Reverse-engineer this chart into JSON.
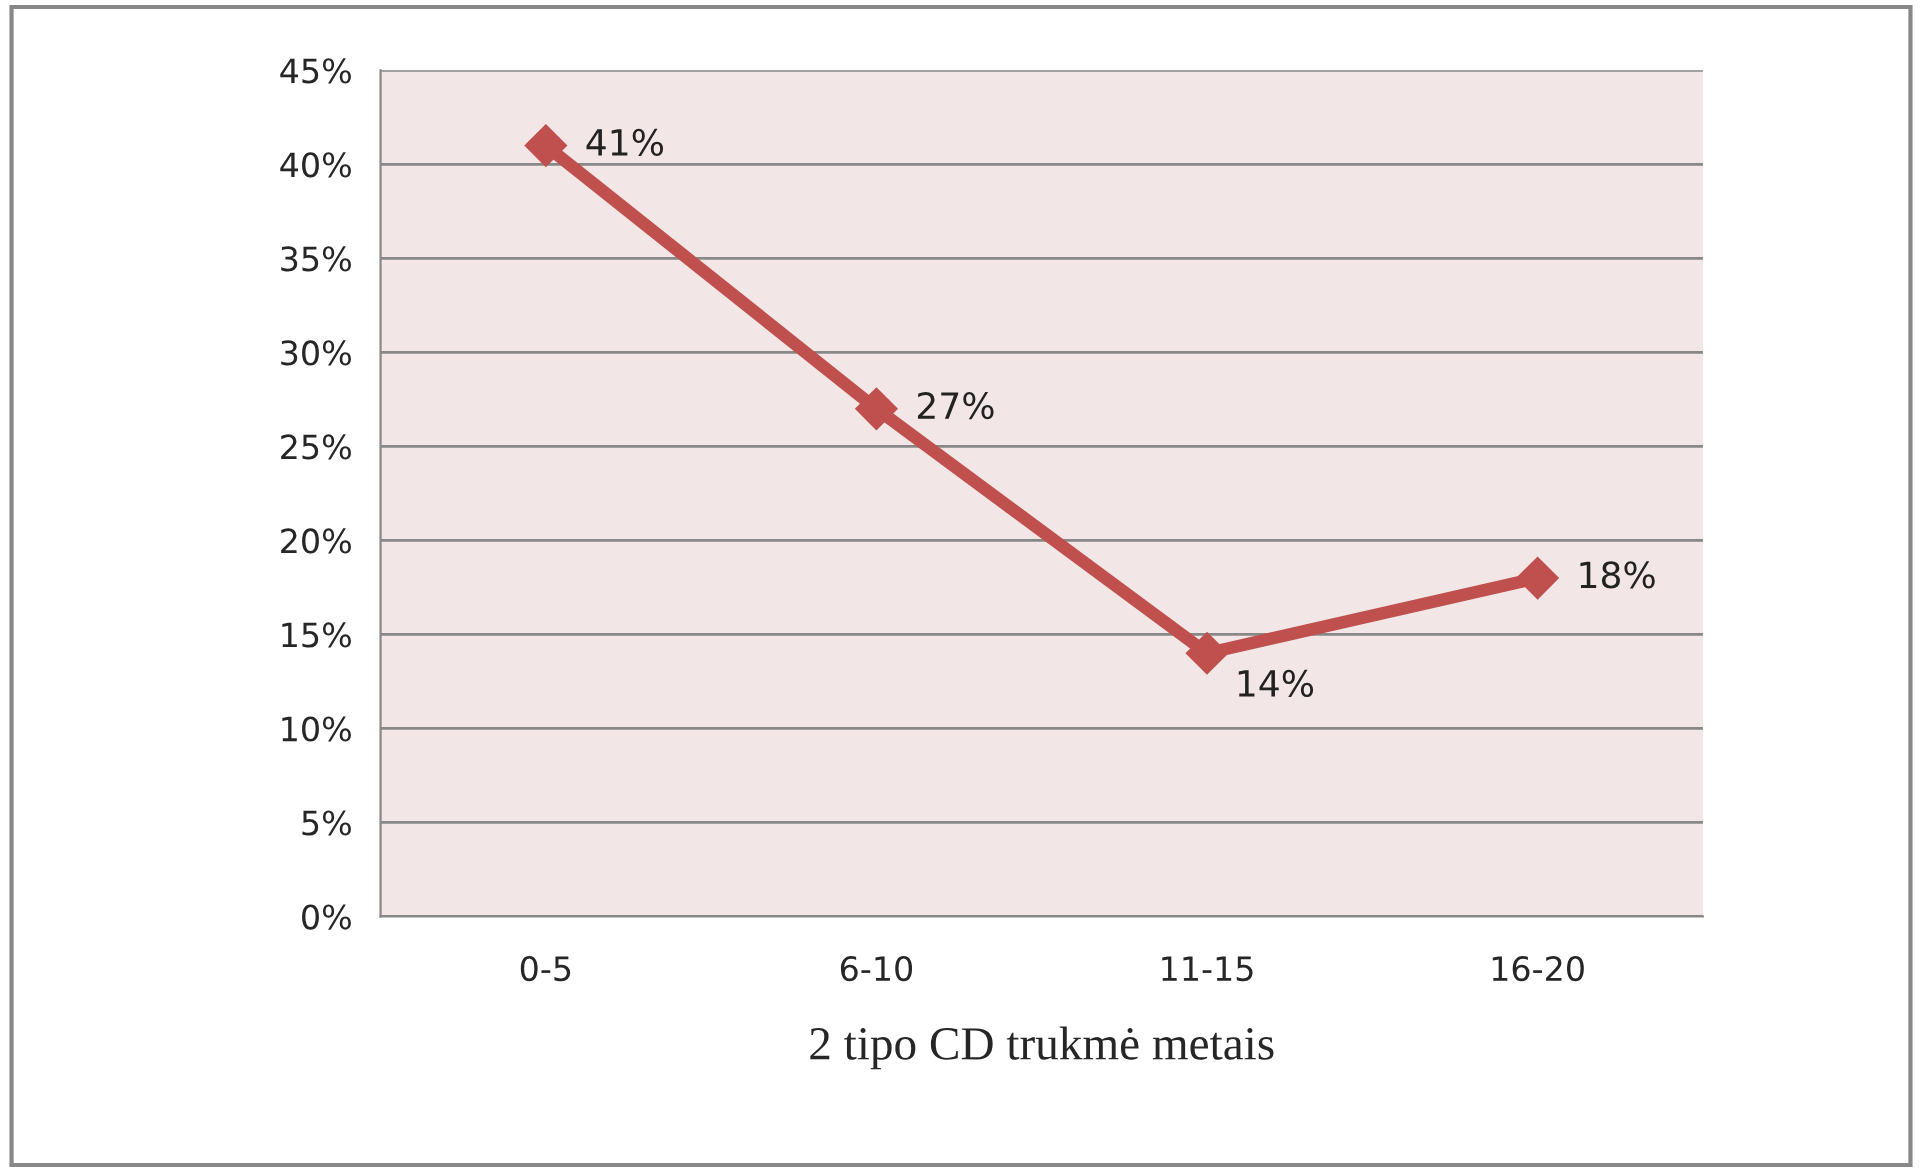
{
  "chart_data": {
    "type": "line",
    "xlabel": "2 tipo CD trukmė metais",
    "categories": [
      "0-5",
      "6-10",
      "11-15",
      "16-20"
    ],
    "series": [
      {
        "color": "#c0504d",
        "values": [
          41,
          27,
          14,
          18
        ],
        "value_labels": [
          "41%",
          "27%",
          "14%",
          "18%"
        ]
      }
    ],
    "ylim": [
      0,
      45
    ],
    "yticks": [
      {
        "value": 0,
        "label": "0%"
      },
      {
        "value": 5,
        "label": "5%"
      },
      {
        "value": 10,
        "label": "10%"
      },
      {
        "value": 15,
        "label": "15%"
      },
      {
        "value": 20,
        "label": "20%"
      },
      {
        "value": 25,
        "label": "25%"
      },
      {
        "value": 30,
        "label": "30%"
      },
      {
        "value": 35,
        "label": "35%"
      },
      {
        "value": 40,
        "label": "40%"
      },
      {
        "value": 45,
        "label": "45%"
      }
    ],
    "grid": "y",
    "legend": false,
    "marker": "diamond",
    "line_style": "solid"
  }
}
